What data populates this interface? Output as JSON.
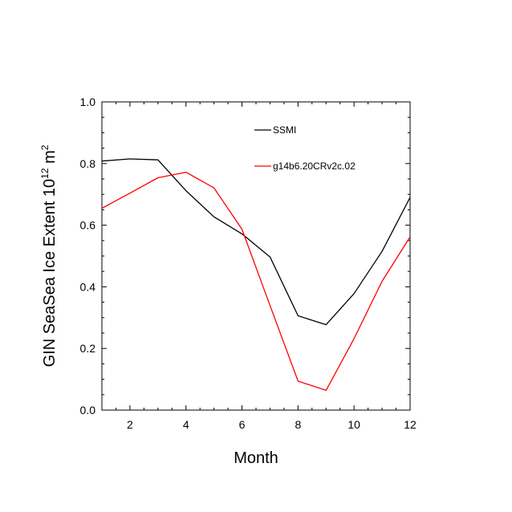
{
  "chart_data": {
    "type": "line",
    "xlabel": "Month",
    "ylabel_main": "GIN SeaSea Ice Extent 10",
    "ylabel_exp1": "12",
    "ylabel_unit": " m",
    "ylabel_exp2": "2",
    "xlim": [
      1,
      12
    ],
    "ylim": [
      0.0,
      1.0
    ],
    "xticks": [
      2,
      4,
      6,
      8,
      10,
      12
    ],
    "yticks": [
      0.0,
      0.2,
      0.4,
      0.6,
      0.8,
      1.0
    ],
    "ytick_labels": [
      "0.0",
      "0.2",
      "0.4",
      "0.6",
      "0.8",
      "1.0"
    ],
    "grid": false,
    "legend_position": "top-right inside",
    "series": [
      {
        "name": "SSMI",
        "color": "#000000",
        "x": [
          1,
          2,
          3,
          4,
          5,
          6,
          7,
          8,
          9,
          10,
          11,
          12
        ],
        "y": [
          0.808,
          0.815,
          0.812,
          0.712,
          0.627,
          0.572,
          0.497,
          0.306,
          0.277,
          0.378,
          0.515,
          0.69
        ]
      },
      {
        "name": "g14b6.20CRv2c.02",
        "color": "#ff0000",
        "x": [
          1,
          2,
          3,
          4,
          5,
          6,
          7,
          8,
          9,
          10,
          11,
          12
        ],
        "y": [
          0.655,
          0.704,
          0.754,
          0.772,
          0.721,
          0.587,
          0.339,
          0.094,
          0.064,
          0.232,
          0.418,
          0.562
        ]
      }
    ]
  }
}
